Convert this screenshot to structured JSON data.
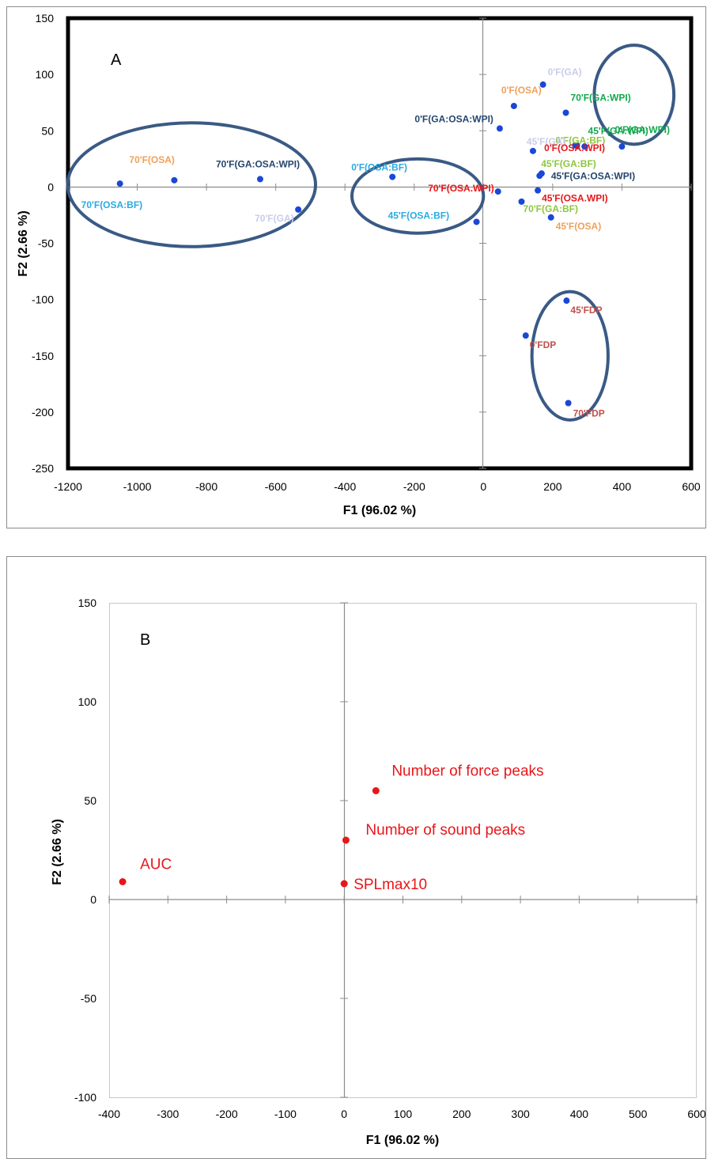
{
  "chart_data": [
    {
      "type": "scatter",
      "panel_label": "A",
      "xlabel": "F1 (96.02 %)",
      "ylabel": "F2 (2.66 %)",
      "xlim": [
        -1200,
        600
      ],
      "ylim": [
        -250,
        150
      ],
      "xticks": [
        -1200,
        -1000,
        -800,
        -600,
        -400,
        -200,
        0,
        200,
        400,
        600
      ],
      "yticks": [
        -250,
        -200,
        -150,
        -100,
        -50,
        0,
        50,
        100,
        150
      ],
      "grid": false,
      "point_color": "#1a47d6",
      "points": [
        {
          "label": "0'F(GA)",
          "x": 172,
          "y": 91,
          "color": "#c9cde8"
        },
        {
          "label": "0'F(OSA)",
          "x": 88,
          "y": 72,
          "color": "#f0a05a"
        },
        {
          "label": "0'F(GA:OSA:WPI)",
          "x": 47,
          "y": 52,
          "color": "#24466e"
        },
        {
          "label": "70'F(GA:WPI)",
          "x": 238,
          "y": 66,
          "color": "#12a84e"
        },
        {
          "label": "45'F(GA:WPI)",
          "x": 270,
          "y": 37,
          "color": "#12a84e"
        },
        {
          "label": "0'F(GA:WPI)",
          "x": 400,
          "y": 36,
          "color": "#12a84e"
        },
        {
          "label": "0'F(GA:BF)",
          "x": 265,
          "y": 37,
          "color": "#8dc63f"
        },
        {
          "label": "45'F(GA)",
          "x": 143,
          "y": 32,
          "color": "#c9cde8"
        },
        {
          "label": "0'F(OSA.WPI)",
          "x": 292,
          "y": 36,
          "color": "#e8161a"
        },
        {
          "label": "45'F(GA:BF)",
          "x": 162,
          "y": 10,
          "color": "#8dc63f"
        },
        {
          "label": "45'F(GA:OSA:WPI)",
          "x": 168,
          "y": 12,
          "color": "#24466e"
        },
        {
          "label": "70'F(OSA.WPI)",
          "x": 42,
          "y": -4,
          "color": "#e8161a"
        },
        {
          "label": "45'F(OSA.WPI)",
          "x": 157,
          "y": -3,
          "color": "#e8161a"
        },
        {
          "label": "70'F(GA:BF)",
          "x": 110,
          "y": -13,
          "color": "#8dc63f"
        },
        {
          "label": "45'F(OSA)",
          "x": 195,
          "y": -27,
          "color": "#f0a05a"
        },
        {
          "label": "0'F(OSA:BF)",
          "x": -263,
          "y": 9,
          "color": "#29abe2"
        },
        {
          "label": "45'F(OSA:BF)",
          "x": -20,
          "y": -31,
          "color": "#29abe2"
        },
        {
          "label": "70'F(OSA)",
          "x": -893,
          "y": 6,
          "color": "#f0a05a"
        },
        {
          "label": "70'F(GA:OSA:WPI)",
          "x": -645,
          "y": 7,
          "color": "#24466e"
        },
        {
          "label": "70'F(OSA:BF)",
          "x": -1050,
          "y": 3,
          "color": "#29abe2"
        },
        {
          "label": "70'F(GA)",
          "x": -535,
          "y": -20,
          "color": "#c9cde8"
        },
        {
          "label": "45'FDP",
          "x": 240,
          "y": -101,
          "color": "#c0504d"
        },
        {
          "label": "0'FDP",
          "x": 122,
          "y": -132,
          "color": "#c0504d"
        },
        {
          "label": "70'FDP",
          "x": 245,
          "y": -192,
          "color": "#c0504d"
        }
      ],
      "clusters": [
        {
          "cx": -843,
          "cy": 2,
          "rx": 358,
          "ry": 55
        },
        {
          "cx": -190,
          "cy": -8,
          "rx": 190,
          "ry": 33
        },
        {
          "cx": 435,
          "cy": 82,
          "rx": 115,
          "ry": 44
        },
        {
          "cx": 250,
          "cy": -150,
          "rx": 110,
          "ry": 57
        }
      ]
    },
    {
      "type": "scatter",
      "panel_label": "B",
      "xlabel": "F1 (96.02 %)",
      "ylabel": "F2 (2.66 %)",
      "xlim": [
        -400,
        600
      ],
      "ylim": [
        -100,
        150
      ],
      "xticks": [
        -400,
        -300,
        -200,
        -100,
        0,
        100,
        200,
        300,
        400,
        500,
        600
      ],
      "yticks": [
        -100,
        -50,
        0,
        50,
        100,
        150
      ],
      "grid": false,
      "point_color": "#e8161a",
      "points": [
        {
          "label": "Number of force peaks",
          "x": 54,
          "y": 55
        },
        {
          "label": "Number of sound peaks",
          "x": 3,
          "y": 30
        },
        {
          "label": "SPLmax10",
          "x": 0,
          "y": 8
        },
        {
          "label": "AUC",
          "x": -377,
          "y": 9
        }
      ]
    }
  ]
}
